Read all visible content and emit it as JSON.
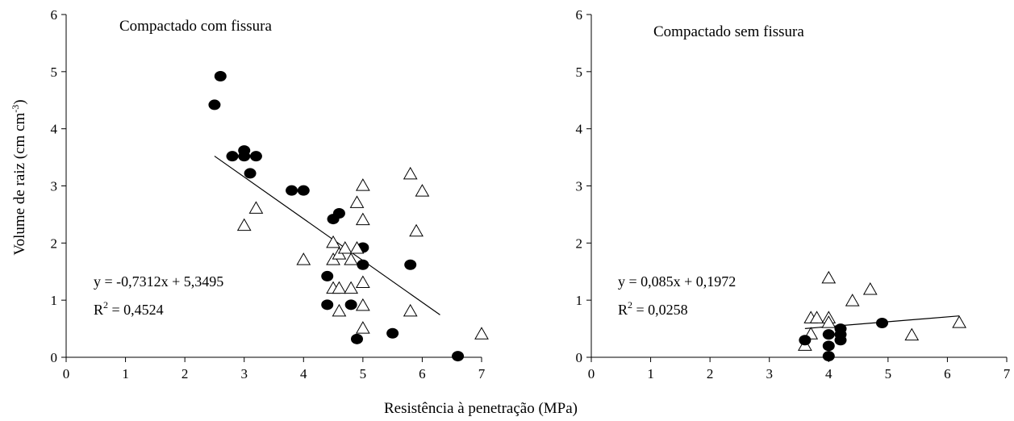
{
  "chart_data": [
    {
      "type": "scatter",
      "title": "Compactado com fissura",
      "ylabel_main": "Volume de raiz (cm cm",
      "ylabel_sup": "-3",
      "ylabel_end": ")",
      "xlim": [
        0,
        7
      ],
      "ylim": [
        0,
        6
      ],
      "x_ticks": [
        "0",
        "1",
        "2",
        "3",
        "4",
        "5",
        "6",
        "7"
      ],
      "y_ticks": [
        "0",
        "1",
        "2",
        "3",
        "4",
        "5",
        "6"
      ],
      "series": [
        {
          "marker": "circle",
          "points": [
            [
              2.5,
              4.42
            ],
            [
              2.6,
              4.92
            ],
            [
              2.8,
              3.52
            ],
            [
              3.0,
              3.62
            ],
            [
              3.0,
              3.52
            ],
            [
              3.2,
              3.52
            ],
            [
              3.1,
              3.22
            ],
            [
              3.8,
              2.92
            ],
            [
              4.0,
              2.92
            ],
            [
              4.6,
              2.52
            ],
            [
              4.5,
              2.42
            ],
            [
              5.0,
              1.92
            ],
            [
              5.0,
              1.62
            ],
            [
              4.4,
              1.42
            ],
            [
              4.4,
              0.92
            ],
            [
              4.8,
              0.92
            ],
            [
              4.9,
              0.32
            ],
            [
              5.5,
              0.42
            ],
            [
              5.8,
              1.62
            ],
            [
              6.6,
              0.02
            ]
          ]
        },
        {
          "marker": "triangle",
          "points": [
            [
              3.0,
              2.32
            ],
            [
              3.2,
              2.62
            ],
            [
              4.0,
              1.72
            ],
            [
              4.5,
              2.02
            ],
            [
              4.5,
              1.72
            ],
            [
              4.6,
              1.82
            ],
            [
              4.7,
              1.92
            ],
            [
              4.8,
              1.72
            ],
            [
              4.9,
              1.92
            ],
            [
              4.9,
              2.72
            ],
            [
              5.0,
              3.02
            ],
            [
              5.0,
              2.42
            ],
            [
              5.0,
              1.32
            ],
            [
              5.0,
              0.92
            ],
            [
              5.0,
              0.52
            ],
            [
              4.5,
              1.22
            ],
            [
              4.6,
              1.22
            ],
            [
              4.8,
              1.22
            ],
            [
              4.6,
              0.82
            ],
            [
              5.8,
              3.22
            ],
            [
              5.9,
              2.22
            ],
            [
              6.0,
              2.92
            ],
            [
              5.8,
              0.82
            ],
            [
              7.0,
              0.42
            ]
          ]
        }
      ],
      "regression": {
        "slope": -0.7312,
        "intercept": 5.3495,
        "x_range": [
          2.5,
          6.3
        ],
        "equation": "y = -0,7312x + 5,3495",
        "r2_prefix": "R",
        "r2_sup": "2",
        "r2_value": " = 0,4524"
      }
    },
    {
      "type": "scatter",
      "title": "Compactado sem fissura",
      "xlim": [
        0,
        7
      ],
      "ylim": [
        0,
        6
      ],
      "x_ticks": [
        "0",
        "1",
        "2",
        "3",
        "4",
        "5",
        "6",
        "7"
      ],
      "y_ticks": [
        "0",
        "1",
        "2",
        "3",
        "4",
        "5",
        "6"
      ],
      "series": [
        {
          "marker": "triangle",
          "points": [
            [
              3.6,
              0.22
            ],
            [
              3.7,
              0.42
            ],
            [
              3.7,
              0.7
            ],
            [
              3.8,
              0.7
            ],
            [
              4.0,
              0.7
            ],
            [
              4.0,
              0.62
            ],
            [
              4.0,
              1.4
            ],
            [
              4.4,
              1.0
            ],
            [
              4.7,
              1.2
            ],
            [
              5.4,
              0.4
            ],
            [
              6.2,
              0.62
            ]
          ]
        },
        {
          "marker": "circle",
          "points": [
            [
              3.6,
              0.3
            ],
            [
              4.0,
              0.4
            ],
            [
              4.0,
              0.2
            ],
            [
              4.0,
              0.02
            ],
            [
              4.2,
              0.5
            ],
            [
              4.2,
              0.4
            ],
            [
              4.2,
              0.3
            ],
            [
              4.9,
              0.6
            ]
          ]
        }
      ],
      "regression": {
        "slope": 0.085,
        "intercept": 0.1972,
        "x_range": [
          3.6,
          6.2
        ],
        "equation": "y = 0,085x + 0,1972",
        "r2_prefix": "R",
        "r2_sup": "2",
        "r2_value": " = 0,0258"
      }
    }
  ],
  "shared_xlabel": "Resistência à penetração (MPa)"
}
